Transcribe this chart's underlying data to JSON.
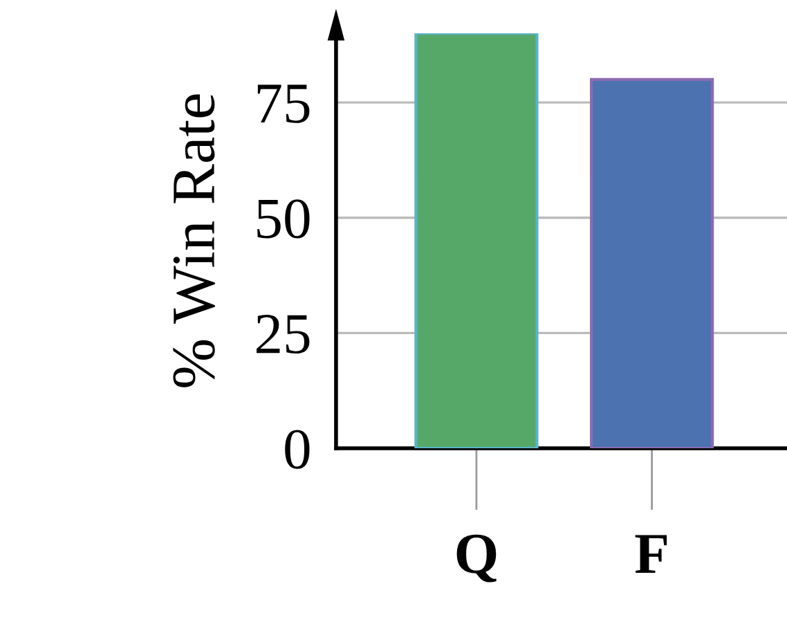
{
  "chart_data": {
    "type": "bar",
    "ylabel": "% Win Rate",
    "categories": [
      "Q",
      "F"
    ],
    "values": [
      90,
      80
    ],
    "colors": [
      "#55a868",
      "#4c72b0"
    ],
    "ylim": [
      0,
      90
    ],
    "yticks": [
      0,
      25,
      50,
      75
    ],
    "grid": "y"
  }
}
